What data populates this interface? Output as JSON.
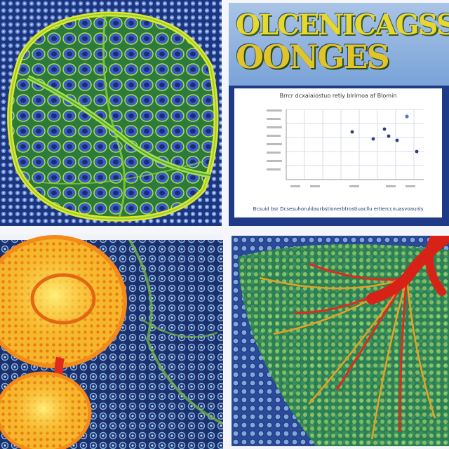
{
  "panels": {
    "top_right": {
      "title_line1": "OLCENICAGSS",
      "title_line2": "OONGES",
      "chart_title": "Brrcr dcxaiaiostuo retiy blrimoa af Blomin",
      "chart_caption": "Bcsuid bsr Dcsesuhoruldaurbstionerbtrostiuacllu ertierccnuasvoaunls"
    }
  },
  "colors": {
    "tissue_blue": "#1e3f9c",
    "tissue_green": "#8fd13a",
    "membrane_yellow": "#e4e62c",
    "organ_orange": "#f59a1e",
    "vessel_red": "#e02a1c",
    "banner_blue": "#1f3a86"
  },
  "icons": [
    "cell-tissue-illustration",
    "organ-illustration",
    "vessel-illustration"
  ]
}
